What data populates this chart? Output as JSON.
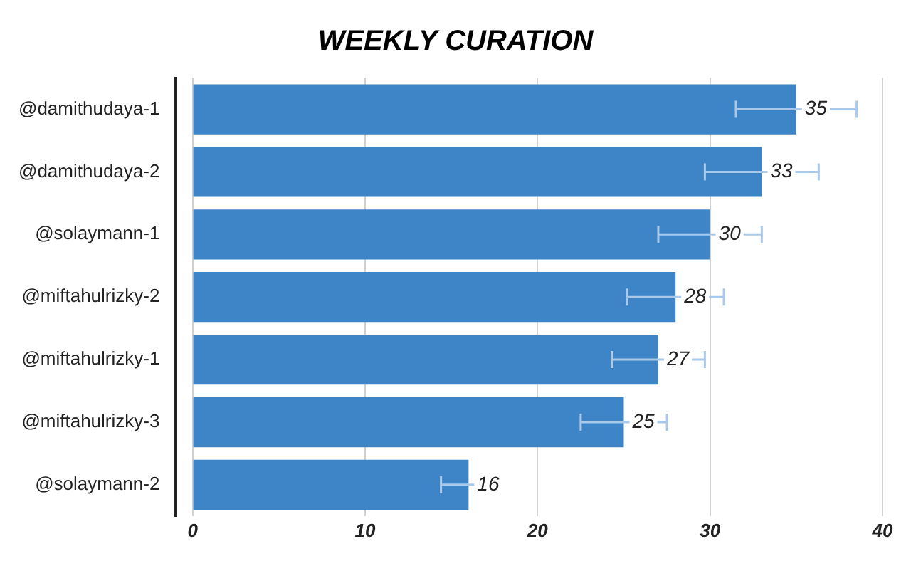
{
  "chart_data": {
    "type": "bar",
    "title": "WEEKLY CURATION",
    "orientation": "horizontal",
    "categories": [
      "@damithudaya-1",
      "@damithudaya-2",
      "@solaymann-1",
      "@miftahulrizky-2",
      "@miftahulrizky-1",
      "@miftahulrizky-3",
      "@solaymann-2"
    ],
    "values": [
      35,
      33,
      30,
      28,
      27,
      25,
      16
    ],
    "errors": [
      3.5,
      3.3,
      3,
      2.8,
      2.7,
      2.5,
      1.6
    ],
    "color": "#3d85c6",
    "xlim": [
      -1,
      40
    ],
    "xticks": [
      0,
      10,
      20,
      30,
      40
    ],
    "grid": "x",
    "data_labels": true,
    "legend": false
  }
}
